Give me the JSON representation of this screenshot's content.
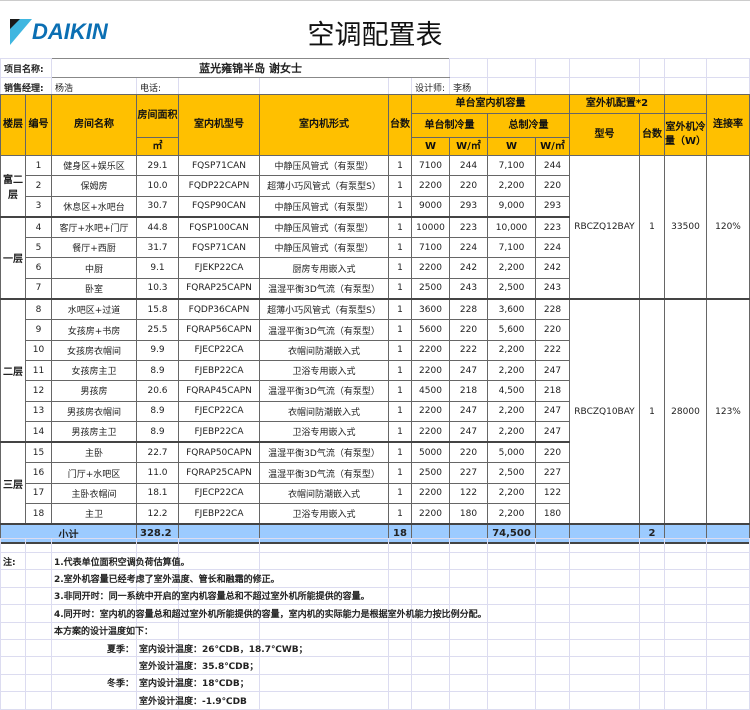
{
  "header": {
    "logo": "DAIKIN",
    "title": "空调配置表"
  },
  "info": {
    "project_label": "项目名称:",
    "project_value": "蓝光雍锦半岛 谢女士",
    "sales_label": "销售经理:",
    "sales_value": "杨浩",
    "phone_label": "电话:",
    "designer_label": "设计师:",
    "designer_value": "李杨"
  },
  "columns": {
    "floor": "楼层",
    "no": "编号",
    "room": "房间名称",
    "area": "房间面积",
    "area_unit": "㎡",
    "model": "室内机型号",
    "type": "室内机形式",
    "qty": "台数",
    "indoor_cap": "单台室内机容量",
    "single_cap": "单台制冷量",
    "total_cap": "总制冷量",
    "w": "W",
    "wm2": "W/㎡",
    "outdoor": "室外机配置*2",
    "out_model": "型号",
    "out_qty": "台数",
    "out_cap": "室外机冷量（W）",
    "ratio": "连接率"
  },
  "floors": [
    {
      "name": "富二层",
      "rows": 3
    },
    {
      "name": "一层",
      "rows": 4
    },
    {
      "name": "二层",
      "rows": 7
    },
    {
      "name": "三层",
      "rows": 4
    }
  ],
  "outdoor_units": [
    {
      "model": "RBCZQ12BAY",
      "qty": "1",
      "capacity": "33500",
      "ratio": "120%",
      "rows": 7
    },
    {
      "model": "RBCZQ10BAY",
      "qty": "1",
      "capacity": "28000",
      "ratio": "123%",
      "rows": 11
    }
  ],
  "rows": [
    {
      "no": "1",
      "room": "健身区+娱乐区",
      "area": "29.1",
      "model": "FQSP71CAN",
      "type": "中静压风管式（有泵型）",
      "qty": "1",
      "w": "7100",
      "wm2": "244",
      "tw": "7,100",
      "twm2": "244"
    },
    {
      "no": "2",
      "room": "保姆房",
      "area": "10.0",
      "model": "FQDP22CAPN",
      "type": "超薄小巧风管式（有泵型S）",
      "qty": "1",
      "w": "2200",
      "wm2": "220",
      "tw": "2,200",
      "twm2": "220"
    },
    {
      "no": "3",
      "room": "休息区+水吧台",
      "area": "30.7",
      "model": "FQSP90CAN",
      "type": "中静压风管式（有泵型）",
      "qty": "1",
      "w": "9000",
      "wm2": "293",
      "tw": "9,000",
      "twm2": "293"
    },
    {
      "no": "4",
      "room": "客厅+水吧+门厅",
      "area": "44.8",
      "model": "FQSP100CAN",
      "type": "中静压风管式（有泵型）",
      "qty": "1",
      "w": "10000",
      "wm2": "223",
      "tw": "10,000",
      "twm2": "223"
    },
    {
      "no": "5",
      "room": "餐厅+西厨",
      "area": "31.7",
      "model": "FQSP71CAN",
      "type": "中静压风管式（有泵型）",
      "qty": "1",
      "w": "7100",
      "wm2": "224",
      "tw": "7,100",
      "twm2": "224"
    },
    {
      "no": "6",
      "room": "中厨",
      "area": "9.1",
      "model": "FJEKP22CA",
      "type": "厨房专用嵌入式",
      "qty": "1",
      "w": "2200",
      "wm2": "242",
      "tw": "2,200",
      "twm2": "242"
    },
    {
      "no": "7",
      "room": "卧室",
      "area": "10.3",
      "model": "FQRAP25CAPN",
      "type": "温湿平衡3D气流（有泵型）",
      "qty": "1",
      "w": "2500",
      "wm2": "243",
      "tw": "2,500",
      "twm2": "243"
    },
    {
      "no": "8",
      "room": "水吧区+过道",
      "area": "15.8",
      "model": "FQDP36CAPN",
      "type": "超薄小巧风管式（有泵型S）",
      "qty": "1",
      "w": "3600",
      "wm2": "228",
      "tw": "3,600",
      "twm2": "228"
    },
    {
      "no": "9",
      "room": "女孩房+书房",
      "area": "25.5",
      "model": "FQRAP56CAPN",
      "type": "温湿平衡3D气流（有泵型）",
      "qty": "1",
      "w": "5600",
      "wm2": "220",
      "tw": "5,600",
      "twm2": "220"
    },
    {
      "no": "10",
      "room": "女孩房衣帽间",
      "area": "9.9",
      "model": "FJECP22CA",
      "type": "衣帽间防潮嵌入式",
      "qty": "1",
      "w": "2200",
      "wm2": "222",
      "tw": "2,200",
      "twm2": "222"
    },
    {
      "no": "11",
      "room": "女孩房主卫",
      "area": "8.9",
      "model": "FJEBP22CA",
      "type": "卫浴专用嵌入式",
      "qty": "1",
      "w": "2200",
      "wm2": "247",
      "tw": "2,200",
      "twm2": "247"
    },
    {
      "no": "12",
      "room": "男孩房",
      "area": "20.6",
      "model": "FQRAP45CAPN",
      "type": "温湿平衡3D气流（有泵型）",
      "qty": "1",
      "w": "4500",
      "wm2": "218",
      "tw": "4,500",
      "twm2": "218"
    },
    {
      "no": "13",
      "room": "男孩房衣帽间",
      "area": "8.9",
      "model": "FJECP22CA",
      "type": "衣帽间防潮嵌入式",
      "qty": "1",
      "w": "2200",
      "wm2": "247",
      "tw": "2,200",
      "twm2": "247"
    },
    {
      "no": "14",
      "room": "男孩房主卫",
      "area": "8.9",
      "model": "FJEBP22CA",
      "type": "卫浴专用嵌入式",
      "qty": "1",
      "w": "2200",
      "wm2": "247",
      "tw": "2,200",
      "twm2": "247"
    },
    {
      "no": "15",
      "room": "主卧",
      "area": "22.7",
      "model": "FQRAP50CAPN",
      "type": "温湿平衡3D气流（有泵型）",
      "qty": "1",
      "w": "5000",
      "wm2": "220",
      "tw": "5,000",
      "twm2": "220"
    },
    {
      "no": "16",
      "room": "门厅+水吧区",
      "area": "11.0",
      "model": "FQRAP25CAPN",
      "type": "温湿平衡3D气流（有泵型）",
      "qty": "1",
      "w": "2500",
      "wm2": "227",
      "tw": "2,500",
      "twm2": "227"
    },
    {
      "no": "17",
      "room": "主卧衣帽间",
      "area": "18.1",
      "model": "FJECP22CA",
      "type": "衣帽间防潮嵌入式",
      "qty": "1",
      "w": "2200",
      "wm2": "122",
      "tw": "2,200",
      "twm2": "122"
    },
    {
      "no": "18",
      "room": "主卫",
      "area": "12.2",
      "model": "FJEBP22CA",
      "type": "卫浴专用嵌入式",
      "qty": "1",
      "w": "2200",
      "wm2": "180",
      "tw": "2,200",
      "twm2": "180"
    }
  ],
  "subtotal": {
    "label": "小计",
    "area": "328.2",
    "qty": "18",
    "total_w": "74,500",
    "out_qty": "2"
  },
  "notes": {
    "label": "注:",
    "items": [
      "1.代表单位面积空调负荷估算值。",
      "2.室外机容量已经考虑了室外温度、管长和融霜的修正。",
      "3.非同开时：同一系统中开启的室内机容量总和不超过室外机所能提供的容量。",
      "4.同开时：室内机的容量总和超过室外机所能提供的容量，室内机的实际能力是根据室外机能力按比例分配。"
    ],
    "design_title": "本方案的设计温度如下：",
    "summer_label": "夏季：",
    "summer_indoor": "室内设计温度：26℃DB，18.7℃WB；",
    "summer_outdoor": "室外设计温度：35.8℃DB；",
    "winter_label": "冬季：",
    "winter_indoor": "室内设计温度：18℃DB；",
    "winter_outdoor": "室外设计温度：-1.9℃DB"
  }
}
